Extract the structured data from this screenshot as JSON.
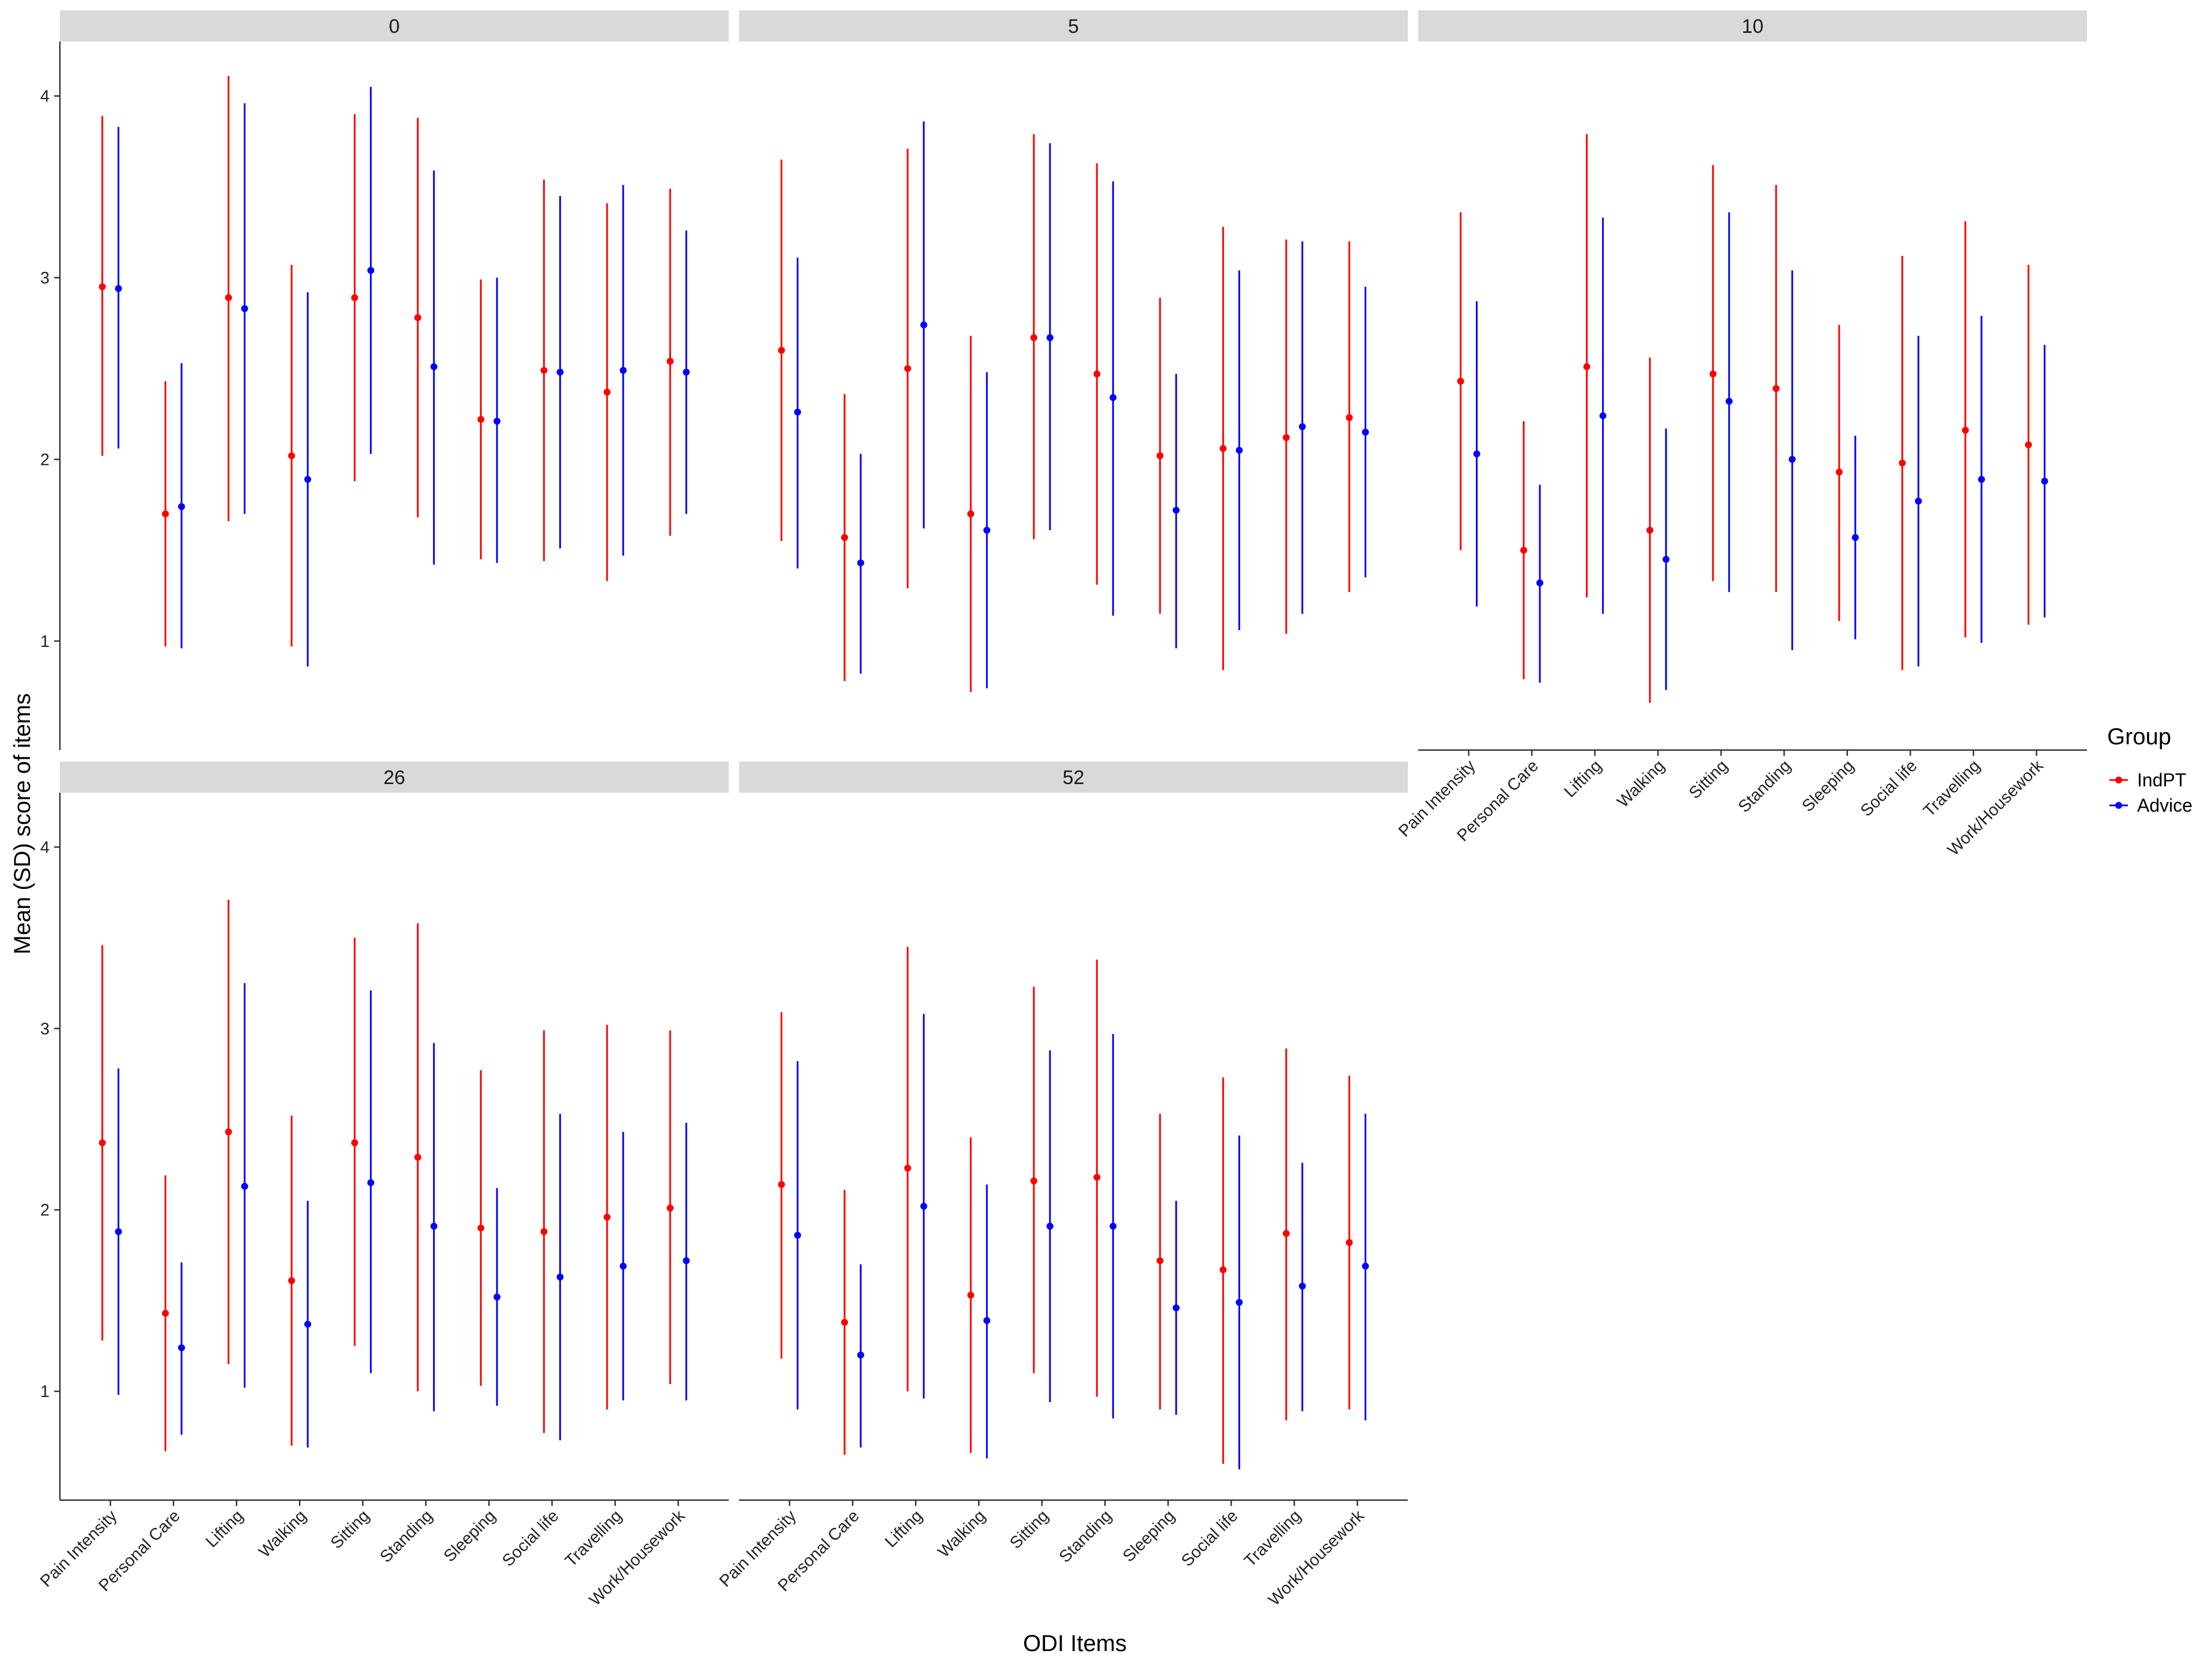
{
  "chart_data": {
    "type": "errorbar",
    "xlabel": "ODI Items",
    "ylabel": "Mean (SD) score of items",
    "ylim": [
      0.4,
      4.3
    ],
    "yticks": [
      1,
      2,
      3,
      4
    ],
    "grid": false,
    "legend": {
      "title": "Group",
      "placement": "right",
      "entries": [
        "IndPT",
        "Advice"
      ]
    },
    "colors": {
      "IndPT": "#ff0000",
      "Advice": "#0000ff",
      "strip": "#d9d9d9"
    },
    "categories": [
      "Pain Intensity",
      "Personal Care",
      "Lifting",
      "Walking",
      "Sitting",
      "Standing",
      "Sleeping",
      "Social life",
      "Travelling",
      "Work/Housework"
    ],
    "panels": [
      {
        "label": "0",
        "series": [
          {
            "name": "IndPT",
            "mean": [
              2.95,
              1.7,
              2.89,
              2.02,
              2.89,
              2.78,
              2.22,
              2.49,
              2.37,
              2.54
            ],
            "low": [
              2.02,
              0.97,
              1.66,
              0.97,
              1.88,
              1.68,
              1.45,
              1.44,
              1.33,
              1.58
            ],
            "high": [
              3.89,
              2.43,
              4.11,
              3.07,
              3.9,
              3.88,
              2.99,
              3.54,
              3.41,
              3.49
            ]
          },
          {
            "name": "Advice",
            "mean": [
              2.94,
              1.74,
              2.83,
              1.89,
              3.04,
              2.51,
              2.21,
              2.48,
              2.49,
              2.48
            ],
            "low": [
              2.06,
              0.96,
              1.7,
              0.86,
              2.03,
              1.42,
              1.43,
              1.51,
              1.47,
              1.7
            ],
            "high": [
              3.83,
              2.53,
              3.96,
              2.92,
              4.05,
              3.59,
              3.0,
              3.45,
              3.51,
              3.26
            ]
          }
        ]
      },
      {
        "label": "5",
        "series": [
          {
            "name": "IndPT",
            "mean": [
              2.6,
              1.57,
              2.5,
              1.7,
              2.67,
              2.47,
              2.02,
              2.06,
              2.12,
              2.23
            ],
            "low": [
              1.55,
              0.78,
              1.29,
              0.72,
              1.56,
              1.31,
              1.15,
              0.84,
              1.04,
              1.27
            ],
            "high": [
              3.65,
              2.36,
              3.71,
              2.68,
              3.79,
              3.63,
              2.89,
              3.28,
              3.21,
              3.2
            ]
          },
          {
            "name": "Advice",
            "mean": [
              2.26,
              1.43,
              2.74,
              1.61,
              2.67,
              2.34,
              1.72,
              2.05,
              2.18,
              2.15
            ],
            "low": [
              1.4,
              0.82,
              1.62,
              0.74,
              1.61,
              1.14,
              0.96,
              1.06,
              1.15,
              1.35
            ],
            "high": [
              3.11,
              2.03,
              3.86,
              2.48,
              3.74,
              3.53,
              2.47,
              3.04,
              3.2,
              2.95
            ]
          }
        ]
      },
      {
        "label": "10",
        "series": [
          {
            "name": "IndPT",
            "mean": [
              2.43,
              1.5,
              2.51,
              1.61,
              2.47,
              2.39,
              1.93,
              1.98,
              2.16,
              2.08
            ],
            "low": [
              1.5,
              0.79,
              1.24,
              0.66,
              1.33,
              1.27,
              1.11,
              0.84,
              1.02,
              1.09
            ],
            "high": [
              3.36,
              2.21,
              3.79,
              2.56,
              3.62,
              3.51,
              2.74,
              3.12,
              3.31,
              3.07
            ]
          },
          {
            "name": "Advice",
            "mean": [
              2.03,
              1.32,
              2.24,
              1.45,
              2.32,
              2.0,
              1.57,
              1.77,
              1.89,
              1.88
            ],
            "low": [
              1.19,
              0.77,
              1.15,
              0.73,
              1.27,
              0.95,
              1.01,
              0.86,
              0.99,
              1.13
            ],
            "high": [
              2.87,
              1.86,
              3.33,
              2.17,
              3.36,
              3.04,
              2.13,
              2.68,
              2.79,
              2.63
            ]
          }
        ]
      },
      {
        "label": "26",
        "series": [
          {
            "name": "IndPT",
            "mean": [
              2.37,
              1.43,
              2.43,
              1.61,
              2.37,
              2.29,
              1.9,
              1.88,
              1.96,
              2.01
            ],
            "low": [
              1.28,
              0.67,
              1.15,
              0.7,
              1.25,
              1.0,
              1.03,
              0.77,
              0.9,
              1.04
            ],
            "high": [
              3.46,
              2.19,
              3.71,
              2.52,
              3.5,
              3.58,
              2.77,
              2.99,
              3.02,
              2.99
            ]
          },
          {
            "name": "Advice",
            "mean": [
              1.88,
              1.24,
              2.13,
              1.37,
              2.15,
              1.91,
              1.52,
              1.63,
              1.69,
              1.72
            ],
            "low": [
              0.98,
              0.76,
              1.02,
              0.69,
              1.1,
              0.89,
              0.92,
              0.73,
              0.95,
              0.95
            ],
            "high": [
              2.78,
              1.71,
              3.25,
              2.05,
              3.21,
              2.92,
              2.12,
              2.53,
              2.43,
              2.48
            ]
          }
        ]
      },
      {
        "label": "52",
        "series": [
          {
            "name": "IndPT",
            "mean": [
              2.14,
              1.38,
              2.23,
              1.53,
              2.16,
              2.18,
              1.72,
              1.67,
              1.87,
              1.82
            ],
            "low": [
              1.18,
              0.65,
              1.0,
              0.66,
              1.1,
              0.97,
              0.9,
              0.6,
              0.84,
              0.9
            ],
            "high": [
              3.09,
              2.11,
              3.45,
              2.4,
              3.23,
              3.38,
              2.53,
              2.73,
              2.89,
              2.74
            ]
          },
          {
            "name": "Advice",
            "mean": [
              1.86,
              1.2,
              2.02,
              1.39,
              1.91,
              1.91,
              1.46,
              1.49,
              1.58,
              1.69
            ],
            "low": [
              0.9,
              0.69,
              0.96,
              0.63,
              0.94,
              0.85,
              0.87,
              0.57,
              0.89,
              0.84
            ],
            "high": [
              2.82,
              1.7,
              3.08,
              2.14,
              2.88,
              2.97,
              2.05,
              2.41,
              2.26,
              2.53
            ]
          }
        ]
      }
    ]
  }
}
